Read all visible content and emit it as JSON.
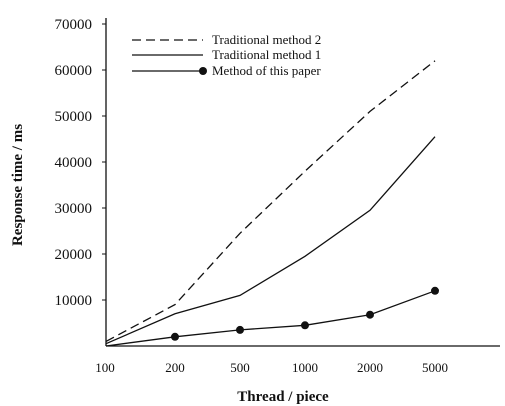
{
  "chart_data": {
    "type": "line",
    "title": "",
    "xlabel": "Thread / piece",
    "ylabel": "Response time / ms",
    "categories": [
      "100",
      "200",
      "500",
      "1000",
      "2000",
      "5000"
    ],
    "ylim": [
      0,
      70000
    ],
    "yticks": [
      10000,
      20000,
      30000,
      40000,
      50000,
      60000,
      70000
    ],
    "ytick_labels": [
      "10000",
      "20000",
      "30000",
      "40000",
      "50000",
      "60000",
      "70000"
    ],
    "grid": false,
    "legend_position": "top-left",
    "series": [
      {
        "name": "Traditional method 2",
        "style": "dashed",
        "marker": "none",
        "color": "#111111",
        "values": [
          1000,
          9000,
          24500,
          38000,
          51000,
          62000
        ]
      },
      {
        "name": "Traditional method 1",
        "style": "solid",
        "marker": "none",
        "color": "#111111",
        "values": [
          500,
          7000,
          11000,
          19500,
          29500,
          45500
        ]
      },
      {
        "name": "Method of this paper",
        "style": "solid",
        "marker": "circle",
        "color": "#111111",
        "values": [
          0,
          2000,
          3500,
          4500,
          6800,
          12000
        ]
      }
    ]
  }
}
